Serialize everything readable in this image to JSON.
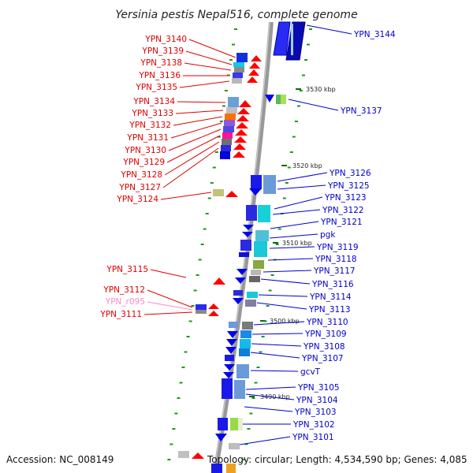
{
  "title": "Yersinia pestis Nepal516, complete genome",
  "footer": {
    "accession": "Accession: NC_008149",
    "topology": "Topology: circular; Length: 4,534,590 bp; Genes: 4,085"
  },
  "scale_labels": [
    "3530 kbp",
    "3520 kbp",
    "3510 kbp",
    "3500 kbp",
    "3490 kbp"
  ],
  "colors": {
    "left_label": "#e00000",
    "right_label": "#0000cc",
    "rna_label": "#ff88c8",
    "backbone": "#999999",
    "arrow_red": "#ff0000",
    "arrow_blue": "#0000ee"
  },
  "left_labels": [
    "YPN_3140",
    "YPN_3139",
    "YPN_3138",
    "YPN_3136",
    "YPN_3135",
    "YPN_3134",
    "YPN_3133",
    "YPN_3132",
    "YPN_3131",
    "YPN_3130",
    "YPN_3129",
    "YPN_3128",
    "YPN_3127",
    "YPN_3124",
    "YPN_3115",
    "YPN_3112",
    "YPN_r095",
    "YPN_3111"
  ],
  "right_labels": [
    "YPN_3144",
    "YPN_3137",
    "YPN_3126",
    "YPN_3125",
    "YPN_3123",
    "YPN_3122",
    "YPN_3121",
    "pgk",
    "YPN_3119",
    "YPN_3118",
    "YPN_3117",
    "YPN_3116",
    "YPN_3114",
    "YPN_3113",
    "YPN_3110",
    "YPN_3109",
    "YPN_3108",
    "YPN_3107",
    "gcvT",
    "YPN_3105",
    "YPN_3104",
    "YPN_3103",
    "YPN_3102",
    "YPN_3101"
  ]
}
